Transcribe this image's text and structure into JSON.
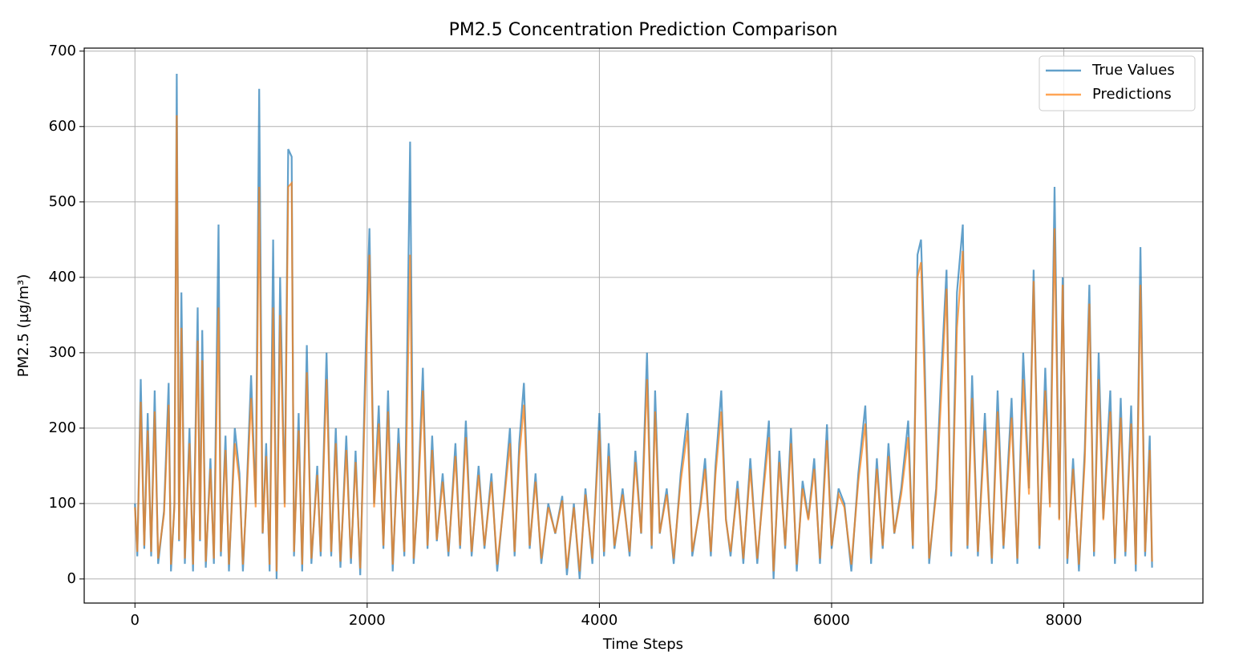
{
  "chart_data": {
    "type": "line",
    "title": "PM2.5 Concentration Prediction Comparison",
    "x_label": "Time Steps",
    "y_label": "PM2.5 (µg/m³)",
    "xlim": [
      -437,
      9198
    ],
    "ylim": [
      -32,
      704
    ],
    "xticks": [
      0,
      2000,
      4000,
      6000,
      8000
    ],
    "yticks": [
      0,
      100,
      200,
      300,
      400,
      500,
      600,
      700
    ],
    "grid": true,
    "legend": "upper right",
    "x": [
      0,
      20,
      50,
      80,
      110,
      140,
      170,
      200,
      250,
      290,
      310,
      340,
      360,
      380,
      400,
      430,
      470,
      500,
      540,
      560,
      580,
      610,
      650,
      680,
      720,
      740,
      780,
      810,
      860,
      900,
      930,
      960,
      1000,
      1040,
      1070,
      1100,
      1130,
      1160,
      1190,
      1220,
      1250,
      1290,
      1320,
      1350,
      1370,
      1410,
      1440,
      1480,
      1520,
      1570,
      1600,
      1650,
      1690,
      1730,
      1770,
      1820,
      1860,
      1900,
      1940,
      1990,
      2020,
      2060,
      2100,
      2140,
      2180,
      2220,
      2270,
      2320,
      2370,
      2400,
      2440,
      2480,
      2520,
      2560,
      2600,
      2650,
      2700,
      2760,
      2800,
      2850,
      2900,
      2960,
      3010,
      3070,
      3120,
      3180,
      3230,
      3270,
      3310,
      3350,
      3400,
      3450,
      3500,
      3560,
      3620,
      3680,
      3720,
      3780,
      3830,
      3880,
      3940,
      4000,
      4040,
      4080,
      4130,
      4200,
      4260,
      4310,
      4360,
      4410,
      4450,
      4480,
      4520,
      4580,
      4640,
      4700,
      4760,
      4800,
      4870,
      4910,
      4960,
      5000,
      5050,
      5090,
      5130,
      5190,
      5240,
      5300,
      5360,
      5410,
      5460,
      5500,
      5550,
      5600,
      5650,
      5700,
      5750,
      5800,
      5850,
      5900,
      5960,
      6000,
      6060,
      6110,
      6170,
      6230,
      6290,
      6340,
      6390,
      6440,
      6490,
      6540,
      6600,
      6660,
      6700,
      6740,
      6770,
      6800,
      6840,
      6900,
      6940,
      6990,
      7030,
      7080,
      7130,
      7170,
      7210,
      7260,
      7320,
      7380,
      7430,
      7480,
      7550,
      7600,
      7650,
      7700,
      7740,
      7790,
      7840,
      7880,
      7920,
      7960,
      7990,
      8030,
      8080,
      8130,
      8180,
      8220,
      8260,
      8300,
      8340,
      8400,
      8440,
      8490,
      8530,
      8580,
      8620,
      8660,
      8700,
      8740,
      8760
    ],
    "series": [
      {
        "name": "True Values",
        "color": "#1f77b4",
        "values": [
          100,
          30,
          265,
          40,
          220,
          30,
          250,
          20,
          90,
          260,
          10,
          100,
          670,
          50,
          380,
          20,
          200,
          10,
          360,
          50,
          330,
          15,
          160,
          20,
          470,
          30,
          190,
          10,
          200,
          140,
          10,
          110,
          270,
          100,
          650,
          60,
          180,
          10,
          450,
          0,
          400,
          100,
          570,
          560,
          30,
          220,
          10,
          310,
          20,
          150,
          30,
          300,
          30,
          200,
          15,
          190,
          20,
          170,
          5,
          320,
          465,
          100,
          230,
          40,
          250,
          10,
          200,
          30,
          580,
          20,
          120,
          280,
          40,
          190,
          50,
          140,
          30,
          180,
          40,
          210,
          30,
          150,
          40,
          140,
          10,
          110,
          200,
          30,
          180,
          260,
          40,
          140,
          20,
          100,
          60,
          110,
          5,
          100,
          0,
          120,
          20,
          220,
          30,
          180,
          40,
          120,
          30,
          170,
          60,
          300,
          40,
          250,
          60,
          120,
          20,
          140,
          220,
          30,
          100,
          160,
          30,
          150,
          250,
          80,
          30,
          130,
          20,
          160,
          20,
          120,
          210,
          0,
          170,
          40,
          200,
          10,
          130,
          80,
          160,
          20,
          205,
          40,
          120,
          100,
          10,
          140,
          230,
          20,
          160,
          40,
          180,
          60,
          120,
          210,
          40,
          430,
          450,
          300,
          20,
          120,
          260,
          410,
          30,
          380,
          470,
          40,
          270,
          30,
          220,
          20,
          250,
          40,
          240,
          20,
          300,
          120,
          410,
          40,
          280,
          100,
          520,
          80,
          400,
          20,
          160,
          10,
          170,
          390,
          30,
          300,
          80,
          250,
          20,
          240,
          30,
          230,
          10,
          440,
          30,
          190,
          15
        ]
      },
      {
        "name": "Predictions",
        "color": "#ff7f0e",
        "values": [
          95,
          36,
          235,
          44,
          197,
          36,
          222,
          27,
          86,
          231,
          19,
          95,
          615,
          52,
          333,
          27,
          180,
          19,
          316,
          52,
          290,
          23,
          146,
          27,
          360,
          36,
          171,
          19,
          180,
          129,
          19,
          104,
          240,
          95,
          520,
          61,
          163,
          19,
          360,
          10,
          350,
          95,
          520,
          525,
          36,
          197,
          19,
          274,
          27,
          138,
          36,
          265,
          36,
          180,
          23,
          171,
          27,
          155,
          14,
          282,
          430,
          95,
          206,
          44,
          222,
          19,
          180,
          36,
          430,
          27,
          112,
          250,
          44,
          171,
          52,
          129,
          36,
          163,
          44,
          188,
          36,
          138,
          44,
          129,
          19,
          104,
          180,
          36,
          163,
          231,
          44,
          129,
          27,
          95,
          61,
          104,
          14,
          95,
          10,
          112,
          27,
          197,
          36,
          163,
          44,
          112,
          36,
          155,
          61,
          265,
          44,
          222,
          61,
          112,
          27,
          129,
          197,
          36,
          95,
          146,
          36,
          138,
          222,
          78,
          36,
          120,
          27,
          146,
          27,
          112,
          188,
          10,
          155,
          44,
          180,
          19,
          120,
          78,
          146,
          27,
          184,
          44,
          112,
          95,
          19,
          129,
          206,
          27,
          146,
          44,
          163,
          61,
          112,
          188,
          44,
          400,
          420,
          265,
          27,
          112,
          231,
          385,
          36,
          333,
          435,
          44,
          240,
          36,
          197,
          27,
          222,
          44,
          214,
          27,
          265,
          112,
          395,
          44,
          250,
          95,
          465,
          78,
          390,
          27,
          146,
          19,
          155,
          365,
          36,
          265,
          78,
          222,
          27,
          214,
          36,
          206,
          19,
          390,
          36,
          171,
          23
        ]
      }
    ]
  }
}
